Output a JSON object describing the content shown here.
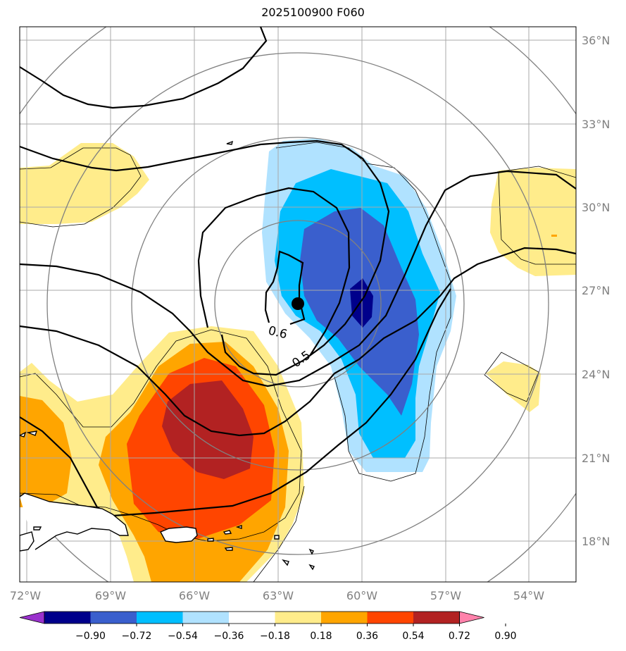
{
  "title": "2025100900 F060",
  "lat_labels": [
    "36°N",
    "33°N",
    "30°N",
    "27°N",
    "24°N",
    "21°N",
    "18°N"
  ],
  "lon_labels": [
    "72°W",
    "69°W",
    "66°W",
    "63°W",
    "60°W",
    "57°W",
    "54°W"
  ],
  "contour_labels": [
    "0.6",
    "0.5"
  ],
  "colorbar": {
    "tick_labels": [
      "−0.90",
      "−0.72",
      "−0.54",
      "−0.36",
      "−0.18",
      "0.18",
      "0.36",
      "0.54",
      "0.72",
      "0.90"
    ],
    "colors": [
      "#9a32cd",
      "#00008b",
      "#3a5fcd",
      "#00bfff",
      "#b0e2ff",
      "#ffffff",
      "#ffec8b",
      "#ffa500",
      "#ff4500",
      "#b22222",
      "#ff82ab"
    ]
  },
  "storm_center": {
    "lat": 26.6,
    "lon": -62.3,
    "label": "storm-center"
  }
}
